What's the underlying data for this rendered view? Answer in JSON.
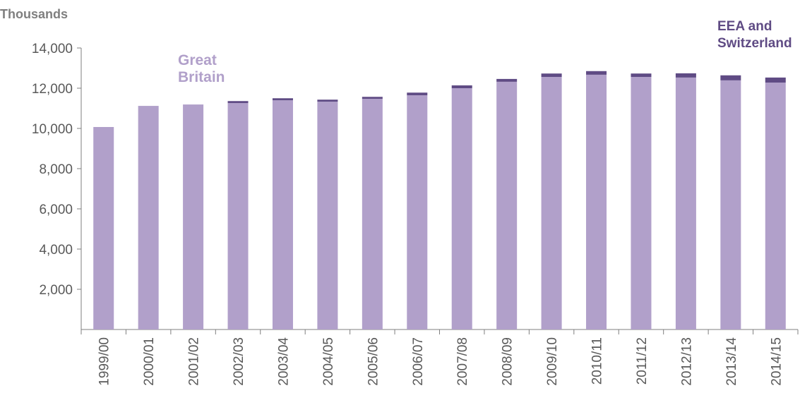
{
  "chart_data": {
    "type": "stacked_bar",
    "y_axis_label": "Thousands",
    "categories": [
      "1999/00",
      "2000/01",
      "2001/02",
      "2002/03",
      "2003/04",
      "2004/05",
      "2005/06",
      "2006/07",
      "2007/08",
      "2008/09",
      "2009/10",
      "2010/11",
      "2011/12",
      "2012/13",
      "2013/14",
      "2014/15"
    ],
    "series": [
      {
        "name": "Great Britain",
        "color": "#b1a0ca",
        "values": [
          10070,
          11120,
          11190,
          11260,
          11400,
          11330,
          11470,
          11650,
          12000,
          12320,
          12560,
          12670,
          12560,
          12530,
          12390,
          12280
        ]
      },
      {
        "name": "EEA and Switzerland",
        "color": "#5f4b84",
        "values": [
          0,
          0,
          0,
          100,
          100,
          100,
          100,
          130,
          140,
          140,
          170,
          180,
          170,
          210,
          250,
          250
        ]
      }
    ],
    "ylim": [
      0,
      14000
    ],
    "yticks": [
      {
        "value": 2000,
        "label": "2,000"
      },
      {
        "value": 4000,
        "label": "4,000"
      },
      {
        "value": 6000,
        "label": "6,000"
      },
      {
        "value": 8000,
        "label": "8,000"
      },
      {
        "value": 10000,
        "label": "10,000"
      },
      {
        "value": 12000,
        "label": "12,000"
      },
      {
        "value": 14000,
        "label": "14,000"
      }
    ]
  }
}
